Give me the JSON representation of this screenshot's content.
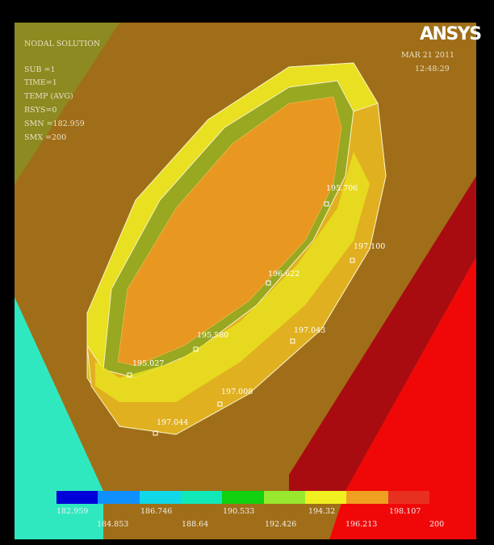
{
  "header": {
    "logo": "ANSYS",
    "date": "MAR 21 2011",
    "time": "12:48:29"
  },
  "info": {
    "line1": "NODAL SOLUTION",
    "line2": "SUB =1",
    "line3": "TIME=1",
    "line4": "TEMP     (AVG)",
    "line5": "RSYS=0",
    "line6": "SMN =182.959",
    "line7": "SMX =200"
  },
  "probes": [
    {
      "value": "195.706"
    },
    {
      "value": "197.100"
    },
    {
      "value": "196.622"
    },
    {
      "value": "197.043"
    },
    {
      "value": "195.580"
    },
    {
      "value": "195.027"
    },
    {
      "value": "197.008"
    },
    {
      "value": "197.044"
    }
  ],
  "legend": {
    "colors": [
      "#0000d8",
      "#1090ff",
      "#10d8e8",
      "#10e8b8",
      "#10d010",
      "#98e830",
      "#f0f020",
      "#f0a020",
      "#e83020"
    ],
    "labels_top": [
      "182.959",
      "186.746",
      "190.533",
      "194.32",
      "198.107"
    ],
    "labels_bottom": [
      "184.853",
      "188.64",
      "192.426",
      "196.213",
      "200"
    ]
  },
  "colors": {
    "background": "#a06e18",
    "plateau": "#b08020",
    "cyan_region": "#30e8c0",
    "dark_red": "#a80c10",
    "red": "#f00808",
    "ring_yellow": "#e8e020",
    "ring_olive": "#98a820",
    "inner_orange": "#e89820"
  }
}
